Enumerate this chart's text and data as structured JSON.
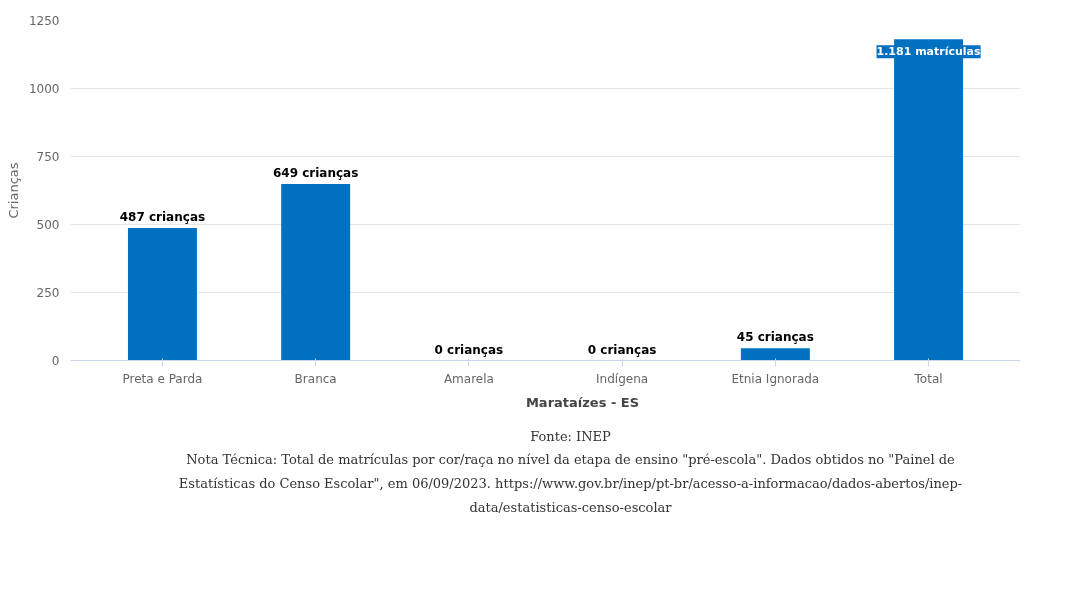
{
  "chart_data": {
    "type": "bar",
    "ylabel": "Crianças",
    "categories": [
      "Preta e Parda",
      "Branca",
      "Amarela",
      "Indígena",
      "Etnia Ignorada",
      "Total"
    ],
    "series": [
      {
        "name": "Marataízes - ES",
        "color": "#0070c0",
        "values": [
          487,
          649,
          0,
          0,
          45,
          1181
        ]
      }
    ],
    "value_labels": [
      "487 crianças",
      "649 crianças",
      "0 crianças",
      "0 crianças",
      "45 crianças",
      "1.181 matrículas"
    ],
    "ylim": [
      0,
      1250
    ],
    "yticks": [
      0,
      250,
      500,
      750,
      1000,
      1250
    ],
    "grid": "y",
    "legend": "bottom",
    "annotations": [
      "Fonte: INEP",
      "Nota Técnica: Total de matrículas por cor/raça no nível da etapa de ensino \"pré-escola\". Dados obtidos no \"Painel de Estatísticas do Censo Escolar\", em 06/09/2023. https://www.gov.br/inep/pt-br/acesso-a-informacao/dados-abertos/inep-data/estatisticas-censo-escolar"
    ]
  }
}
